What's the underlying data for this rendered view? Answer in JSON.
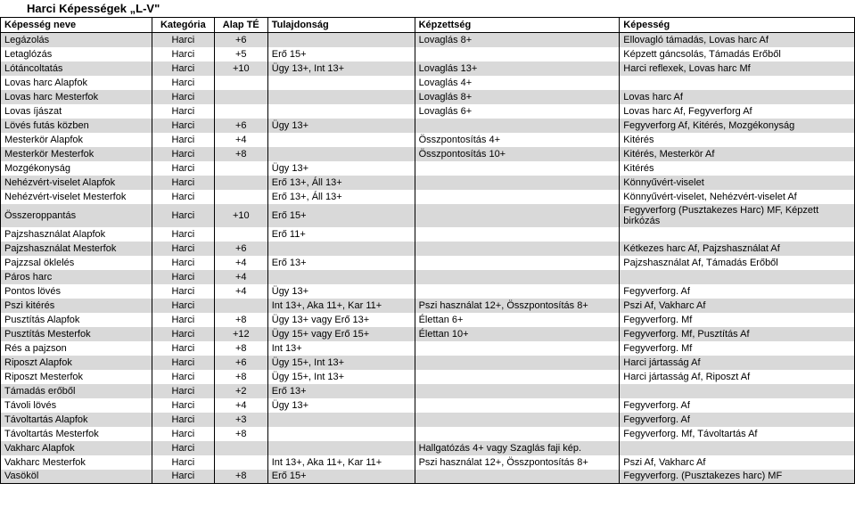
{
  "title": "Harci Képességek „L-V\"",
  "headers": {
    "name": "Képesség neve",
    "category": "Kategória",
    "te": "Alap TÉ",
    "attribute": "Tulajdonság",
    "skill": "Képzettség",
    "ability": "Képesség"
  },
  "colors": {
    "even_row_bg": "#d9d9d9",
    "odd_row_bg": "#ffffff",
    "border": "#000000",
    "text": "#000000"
  },
  "rows": [
    {
      "name": "Legázolás",
      "cat": "Harci",
      "te": "+6",
      "tul": "",
      "kepz": "Lovaglás 8+",
      "kep": "Ellovagló támadás, Lovas harc Af"
    },
    {
      "name": "Letaglózás",
      "cat": "Harci",
      "te": "+5",
      "tul": "Erő 15+",
      "kepz": "",
      "kep": "Képzett gáncsolás, Támadás Erőből"
    },
    {
      "name": "Lótáncoltatás",
      "cat": "Harci",
      "te": "+10",
      "tul": "Ügy 13+, Int 13+",
      "kepz": "Lovaglás 13+",
      "kep": "Harci reflexek, Lovas harc Mf"
    },
    {
      "name": "Lovas harc Alapfok",
      "cat": "Harci",
      "te": "",
      "tul": "",
      "kepz": "Lovaglás 4+",
      "kep": ""
    },
    {
      "name": "Lovas harc Mesterfok",
      "cat": "Harci",
      "te": "",
      "tul": "",
      "kepz": "Lovaglás 8+",
      "kep": "Lovas harc Af"
    },
    {
      "name": "Lovas íjászat",
      "cat": "Harci",
      "te": "",
      "tul": "",
      "kepz": "Lovaglás 6+",
      "kep": "Lovas harc Af, Fegyverforg Af"
    },
    {
      "name": "Lövés futás közben",
      "cat": "Harci",
      "te": "+6",
      "tul": "Ügy 13+",
      "kepz": "",
      "kep": "Fegyverforg Af, Kitérés, Mozgékonyság"
    },
    {
      "name": "Mesterkör Alapfok",
      "cat": "Harci",
      "te": "+4",
      "tul": "",
      "kepz": "Összpontosítás 4+",
      "kep": "Kitérés"
    },
    {
      "name": "Mesterkör Mesterfok",
      "cat": "Harci",
      "te": "+8",
      "tul": "",
      "kepz": "Összpontosítás 10+",
      "kep": "Kitérés, Mesterkör Af"
    },
    {
      "name": "Mozgékonyság",
      "cat": "Harci",
      "te": "",
      "tul": "Ügy 13+",
      "kepz": "",
      "kep": "Kitérés"
    },
    {
      "name": "Nehézvért-viselet Alapfok",
      "cat": "Harci",
      "te": "",
      "tul": "Erő 13+, Áll 13+",
      "kepz": "",
      "kep": "Könnyűvért-viselet"
    },
    {
      "name": "Nehézvért-viselet Mesterfok",
      "cat": "Harci",
      "te": "",
      "tul": "Erő 13+, Áll 13+",
      "kepz": "",
      "kep": "Könnyűvért-viselet, Nehézvért-viselet Af"
    },
    {
      "name": "Összeroppantás",
      "cat": "Harci",
      "te": "+10",
      "tul": "Erő 15+",
      "kepz": "",
      "kep": "Fegyverforg (Pusztakezes Harc) MF, Képzett birkózás"
    },
    {
      "name": "Pajzshasználat Alapfok",
      "cat": "Harci",
      "te": "",
      "tul": "Erő 11+",
      "kepz": "",
      "kep": ""
    },
    {
      "name": "Pajzshasználat Mesterfok",
      "cat": "Harci",
      "te": "+6",
      "tul": "",
      "kepz": "",
      "kep": "Kétkezes harc Af, Pajzshasználat Af"
    },
    {
      "name": "Pajzzsal öklelés",
      "cat": "Harci",
      "te": "+4",
      "tul": "Erő 13+",
      "kepz": "",
      "kep": "Pajzshasználat Af, Támadás Erőből"
    },
    {
      "name": "Páros harc",
      "cat": "Harci",
      "te": "+4",
      "tul": "",
      "kepz": "",
      "kep": ""
    },
    {
      "name": "Pontos lövés",
      "cat": "Harci",
      "te": "+4",
      "tul": "Ügy 13+",
      "kepz": "",
      "kep": "Fegyverforg. Af"
    },
    {
      "name": "Pszi kitérés",
      "cat": "Harci",
      "te": "",
      "tul": "Int 13+, Aka 11+, Kar 11+",
      "kepz": "Pszi használat 12+, Összpontosítás 8+",
      "kep": "Pszi Af, Vakharc Af"
    },
    {
      "name": "Pusztítás Alapfok",
      "cat": "Harci",
      "te": "+8",
      "tul": "Ügy 13+ vagy Erő 13+",
      "kepz": "Élettan 6+",
      "kep": "Fegyverforg. Mf"
    },
    {
      "name": "Pusztítás Mesterfok",
      "cat": "Harci",
      "te": "+12",
      "tul": "Ügy 15+ vagy Erő 15+",
      "kepz": "Élettan 10+",
      "kep": "Fegyverforg. Mf, Pusztítás Af"
    },
    {
      "name": "Rés a pajzson",
      "cat": "Harci",
      "te": "+8",
      "tul": "Int 13+",
      "kepz": "",
      "kep": "Fegyverforg. Mf"
    },
    {
      "name": "Riposzt Alapfok",
      "cat": "Harci",
      "te": "+6",
      "tul": "Ügy 15+, Int 13+",
      "kepz": "",
      "kep": "Harci jártasság Af"
    },
    {
      "name": "Riposzt Mesterfok",
      "cat": "Harci",
      "te": "+8",
      "tul": "Ügy 15+, Int 13+",
      "kepz": "",
      "kep": "Harci jártasság Af, Riposzt Af"
    },
    {
      "name": "Támadás erőből",
      "cat": "Harci",
      "te": "+2",
      "tul": "Erő 13+",
      "kepz": "",
      "kep": ""
    },
    {
      "name": "Távoli lövés",
      "cat": "Harci",
      "te": "+4",
      "tul": "Ügy 13+",
      "kepz": "",
      "kep": "Fegyverforg. Af"
    },
    {
      "name": "Távoltartás Alapfok",
      "cat": "Harci",
      "te": "+3",
      "tul": "",
      "kepz": "",
      "kep": "Fegyverforg. Af"
    },
    {
      "name": "Távoltartás Mesterfok",
      "cat": "Harci",
      "te": "+8",
      "tul": "",
      "kepz": "",
      "kep": "Fegyverforg. Mf, Távoltartás Af"
    },
    {
      "name": "Vakharc Alapfok",
      "cat": "Harci",
      "te": "",
      "tul": "",
      "kepz": "Hallgatózás 4+ vagy Szaglás faji kép.",
      "kep": ""
    },
    {
      "name": "Vakharc Mesterfok",
      "cat": "Harci",
      "te": "",
      "tul": "Int 13+, Aka 11+, Kar 11+",
      "kepz": "Pszi használat 12+, Összpontosítás 8+",
      "kep": "Pszi Af, Vakharc Af"
    },
    {
      "name": "Vasököl",
      "cat": "Harci",
      "te": "+8",
      "tul": "Erő 15+",
      "kepz": "",
      "kep": "Fegyverforg. (Pusztakezes harc) MF"
    }
  ]
}
